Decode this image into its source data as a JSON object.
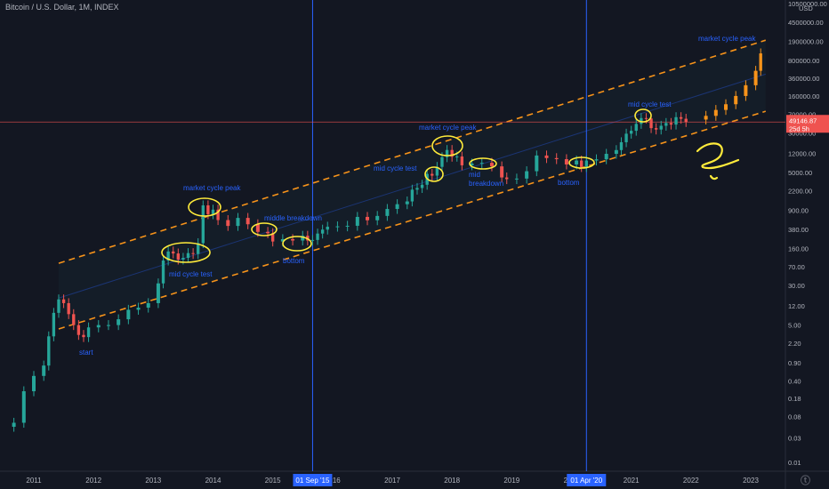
{
  "header": {
    "symbol_title": "Bitcoin / U.S. Dollar, 1M, INDEX"
  },
  "price_axis": {
    "currency": "USD",
    "last_price": "49146.87",
    "countdown": "25d 5h",
    "labels": [
      "10500000.00",
      "4500000.00",
      "1900000.00",
      "800000.00",
      "360000.00",
      "160000.00",
      "70000.00",
      "30000.00",
      "12000.00",
      "5000.00",
      "2200.00",
      "900.00",
      "380.00",
      "160.00",
      "70.00",
      "30.00",
      "12.00",
      "5.00",
      "2.20",
      "0.90",
      "0.40",
      "0.18",
      "0.08",
      "0.03",
      "0.01"
    ]
  },
  "time_axis": {
    "labels": [
      "2011",
      "2012",
      "2013",
      "2014",
      "2015",
      "2016",
      "2017",
      "2018",
      "2019",
      "2020",
      "2021",
      "2022",
      "2023"
    ],
    "crosshair_labels": [
      "01 Sep '15",
      "01 Apr '20"
    ]
  },
  "annotations": {
    "start": "start",
    "mid_cycle_test_2013": "mid cycle test",
    "market_cycle_peak_2013": "market cycle peak",
    "middle_breakdown": "middle breakdown",
    "bottom_2015": "bottom",
    "mid_cycle_test_2017": "mid cycle test",
    "market_cycle_peak_2017": "market cycle peak",
    "mid_breakdown_l1": "mid",
    "mid_breakdown_l2": "breakdown",
    "bottom_2020": "bottom",
    "mid_cycle_test_2021": "mid cycle test",
    "market_cycle_peak_2023": "market cycle peak"
  },
  "colors": {
    "background": "#131722",
    "up": "#26a69a",
    "down": "#ef5350",
    "projection": "#f7931a",
    "channel": "#f7931a",
    "annotation_text": "#2962ff",
    "marker": "#ffeb3b",
    "crosshair": "#2962ff"
  },
  "chart_data": {
    "type": "candlestick",
    "title": "Bitcoin / U.S. Dollar, 1M, INDEX",
    "yscale": "log",
    "ylim": [
      0.01,
      10500000
    ],
    "xlim": [
      "2010-07",
      "2023-06"
    ],
    "series": [
      {
        "name": "BTCUSD",
        "points": [
          [
            "2010-07",
            0.05
          ],
          [
            "2010-09",
            0.06
          ],
          [
            "2010-11",
            0.25
          ],
          [
            "2011-01",
            0.5
          ],
          [
            "2011-03",
            0.8
          ],
          [
            "2011-04",
            3
          ],
          [
            "2011-05",
            8.7
          ],
          [
            "2011-06",
            16
          ],
          [
            "2011-07",
            13.5
          ],
          [
            "2011-08",
            8.2
          ],
          [
            "2011-09",
            5
          ],
          [
            "2011-10",
            3.2
          ],
          [
            "2011-11",
            2.9
          ],
          [
            "2011-12",
            4.5
          ],
          [
            "2012-02",
            5
          ],
          [
            "2012-04",
            5
          ],
          [
            "2012-06",
            6.5
          ],
          [
            "2012-08",
            10
          ],
          [
            "2012-10",
            11
          ],
          [
            "2012-12",
            13.5
          ],
          [
            "2013-02",
            33
          ],
          [
            "2013-03",
            93
          ],
          [
            "2013-04",
            140
          ],
          [
            "2013-05",
            128
          ],
          [
            "2013-06",
            97
          ],
          [
            "2013-07",
            105
          ],
          [
            "2013-08",
            130
          ],
          [
            "2013-09",
            125
          ],
          [
            "2013-10",
            204
          ],
          [
            "2013-11",
            1130
          ],
          [
            "2013-12",
            757
          ],
          [
            "2014-01",
            930
          ],
          [
            "2014-02",
            580
          ],
          [
            "2014-04",
            445
          ],
          [
            "2014-06",
            640
          ],
          [
            "2014-08",
            480
          ],
          [
            "2014-10",
            340
          ],
          [
            "2014-12",
            320
          ],
          [
            "2015-01",
            220
          ],
          [
            "2015-03",
            245
          ],
          [
            "2015-05",
            230
          ],
          [
            "2015-07",
            285
          ],
          [
            "2015-08",
            230
          ],
          [
            "2015-09",
            236
          ],
          [
            "2015-10",
            315
          ],
          [
            "2015-11",
            377
          ],
          [
            "2015-12",
            430
          ],
          [
            "2016-02",
            437
          ],
          [
            "2016-04",
            448
          ],
          [
            "2016-06",
            670
          ],
          [
            "2016-08",
            575
          ],
          [
            "2016-10",
            700
          ],
          [
            "2016-12",
            960
          ],
          [
            "2017-02",
            1190
          ],
          [
            "2017-04",
            1350
          ],
          [
            "2017-05",
            2300
          ],
          [
            "2017-06",
            2480
          ],
          [
            "2017-07",
            2870
          ],
          [
            "2017-08",
            4700
          ],
          [
            "2017-09",
            4340
          ],
          [
            "2017-10",
            6450
          ],
          [
            "2017-11",
            10000
          ],
          [
            "2017-12",
            13860
          ],
          [
            "2018-01",
            10220
          ],
          [
            "2018-02",
            10320
          ],
          [
            "2018-03",
            6930
          ],
          [
            "2018-05",
            7500
          ],
          [
            "2018-07",
            7750
          ],
          [
            "2018-09",
            6600
          ],
          [
            "2018-11",
            4000
          ],
          [
            "2018-12",
            3700
          ],
          [
            "2019-02",
            3800
          ],
          [
            "2019-04",
            5300
          ],
          [
            "2019-06",
            10800
          ],
          [
            "2019-08",
            9600
          ],
          [
            "2019-10",
            9150
          ],
          [
            "2019-12",
            7200
          ],
          [
            "2020-02",
            8600
          ],
          [
            "2020-03",
            6400
          ],
          [
            "2020-04",
            8600
          ],
          [
            "2020-06",
            9100
          ],
          [
            "2020-08",
            11650
          ],
          [
            "2020-10",
            13800
          ],
          [
            "2020-11",
            19700
          ],
          [
            "2020-12",
            29000
          ],
          [
            "2021-01",
            33100
          ],
          [
            "2021-02",
            45200
          ],
          [
            "2021-03",
            58800
          ],
          [
            "2021-04",
            57700
          ],
          [
            "2021-05",
            37300
          ],
          [
            "2021-06",
            35000
          ],
          [
            "2021-07",
            41500
          ],
          [
            "2021-08",
            47100
          ],
          [
            "2021-09",
            43800
          ],
          [
            "2021-10",
            61300
          ],
          [
            "2021-11",
            57000
          ],
          [
            "2021-12",
            49146.87
          ]
        ]
      },
      {
        "name": "Projection",
        "points": [
          [
            "2022-02",
            55000
          ],
          [
            "2022-04",
            65000
          ],
          [
            "2022-06",
            85000
          ],
          [
            "2022-08",
            110000
          ],
          [
            "2022-10",
            160000
          ],
          [
            "2022-12",
            260000
          ],
          [
            "2023-02",
            500000
          ],
          [
            "2023-03",
            1100000
          ]
        ]
      }
    ],
    "channel": {
      "upper": [
        [
          "2011-06",
          82
        ],
        [
          "2023-04",
          2000000
        ]
      ],
      "lower": [
        [
          "2011-06",
          4.2
        ],
        [
          "2023-04",
          80000
        ]
      ],
      "mid": [
        [
          "2011-06",
          17
        ],
        [
          "2023-04",
          430000
        ]
      ]
    },
    "crosshairs": [
      "2015-09",
      "2020-04"
    ]
  }
}
